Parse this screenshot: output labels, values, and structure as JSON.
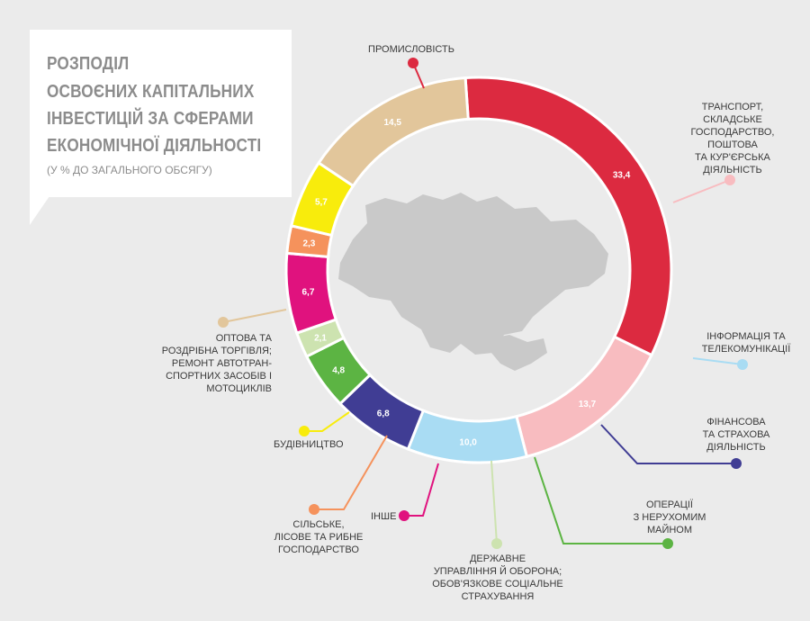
{
  "title": {
    "line1": "РОЗПОДІЛ",
    "line2": "ОСВОЄНИХ КАПІТАЛЬНИХ",
    "line3": "ІНВЕСТИЦІЙ ЗА СФЕРАМИ",
    "line4": "ЕКОНОМІЧНОЇ ДІЯЛЬНОСТІ",
    "subtitle": "(У % ДО ЗАГАЛЬНОГО ОБСЯГУ)"
  },
  "chart_data": {
    "type": "pie",
    "style": "donut",
    "center_image": "ukraine-map",
    "slices": [
      {
        "name": "ПРОМИСЛОВІСТЬ",
        "value": 33.4,
        "value_label": "33,4",
        "color": "#dc2a40"
      },
      {
        "name": "ТРАНСПОРТ, СКЛАДСЬКЕ ГОСПОДАРСТВО, ПОШТОВА ТА КУР'ЄРСЬКА ДІЯЛЬНІСТЬ",
        "value": 13.7,
        "value_label": "13,7",
        "color": "#f8bcc0"
      },
      {
        "name": "ІНФОРМАЦІЯ ТА ТЕЛЕКОМУНІКАЦІЇ",
        "value": 10.0,
        "value_label": "10,0",
        "color": "#a9dcf3"
      },
      {
        "name": "ФІНАНСОВА ТА СТРАХОВА ДІЯЛЬНІСТЬ",
        "value": 6.8,
        "value_label": "6,8",
        "color": "#403d94"
      },
      {
        "name": "ОПЕРАЦІЇ З НЕРУХОМИМ МАЙНОМ",
        "value": 4.8,
        "value_label": "4,8",
        "color": "#5cb443"
      },
      {
        "name": "ДЕРЖАВНЕ УПРАВЛІННЯ Й ОБОРОНА; ОБОВ'ЯЗКОВЕ СОЦІАЛЬНЕ СТРАХУВАННЯ",
        "value": 2.1,
        "value_label": "2,1",
        "color": "#cde3b0"
      },
      {
        "name": "ІНШЕ",
        "value": 6.7,
        "value_label": "6,7",
        "color": "#e0127e"
      },
      {
        "name": "СІЛЬСЬКЕ, ЛІСОВЕ ТА РИБНЕ ГОСПОДАРСТВО",
        "value": 2.3,
        "value_label": "2,3",
        "color": "#f5925c"
      },
      {
        "name": "БУДІВНИЦТВО",
        "value": 5.7,
        "value_label": "5,7",
        "color": "#f8ec0c"
      },
      {
        "name": "ОПТОВА ТА РОЗДРІБНА ТОРГІВЛЯ; РЕМОНТ АВТОТРАНСПОРТНИХ ЗАСОБІВ І МОТОЦИКЛІВ",
        "value": 14.5,
        "value_label": "14,5",
        "color": "#e2c69b"
      }
    ]
  },
  "labels": {
    "industry": [
      "ПРОМИСЛОВІСТЬ"
    ],
    "transport": [
      "ТРАНСПОРТ,",
      "СКЛАДСЬКЕ",
      "ГОСПОДАРСТВО,",
      "ПОШТОВА",
      "ТА КУР'ЄРСЬКА",
      "ДІЯЛЬНІСТЬ"
    ],
    "info": [
      "ІНФОРМАЦІЯ ТА",
      "ТЕЛЕКОМУНІКАЦІЇ"
    ],
    "finance": [
      "ФІНАНСОВА",
      "ТА СТРАХОВА",
      "ДІЯЛЬНІСТЬ"
    ],
    "realestate": [
      "ОПЕРАЦІЇ",
      "З НЕРУХОМИМ",
      "МАЙНОМ"
    ],
    "public": [
      "ДЕРЖАВНЕ",
      "УПРАВЛІННЯ Й ОБОРОНА;",
      "ОБОВ'ЯЗКОВЕ СОЦІАЛЬНЕ",
      "СТРАХУВАННЯ"
    ],
    "other": [
      "ІНШЕ"
    ],
    "agri": [
      "СІЛЬСЬКЕ,",
      "ЛІСОВЕ ТА РИБНЕ",
      "ГОСПОДАРСТВО"
    ],
    "construction": [
      "БУДІВНИЦТВО"
    ],
    "trade": [
      "ОПТОВА ТА",
      "РОЗДРІБНА ТОРГІВЛЯ;",
      "РЕМОНТ АВТОТРАН-",
      "СПОРТНИХ ЗАСОБІВ І",
      "МОТОЦИКЛІВ"
    ]
  }
}
